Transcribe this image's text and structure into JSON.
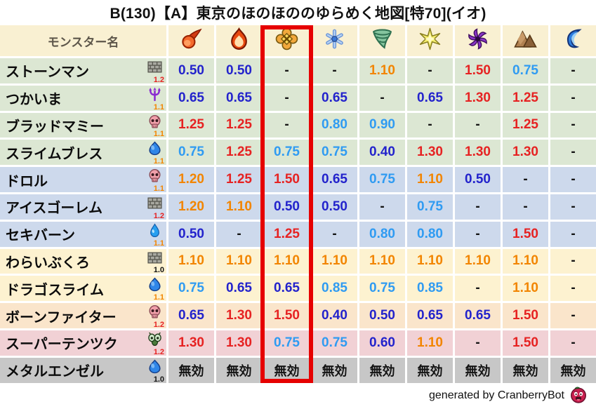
{
  "chart_data": {
    "type": "table",
    "title": "B(130)【A】東京のほのほののゆらめく地図[特70](イオ)",
    "name_header": "モンスター名",
    "element_columns": [
      "fireball-icon",
      "flame-icon",
      "explosion-icon",
      "snowflake-icon",
      "tornado-icon",
      "light-star-icon",
      "dark-pinwheel-icon",
      "earth-mountain-icon",
      "water-wave-icon"
    ],
    "highlight": {
      "column_index": 2,
      "border_color": "#e60000"
    },
    "value_colors": {
      "strong_resist": "#2323cc",
      "mild_resist": "#2f9bf2",
      "mild_weak": "#f28500",
      "strong_weak": "#e62222",
      "neutral": "#141414"
    },
    "level_colors": {
      "1.2": "#e62222",
      "1.1": "#f28500",
      "1.0": "#141414"
    },
    "rows": [
      {
        "name": "ストーンマン",
        "family_icon": "brick-icon",
        "level": "1.2",
        "bg": "#dce7d3",
        "values": [
          "0.50",
          "0.50",
          "-",
          "-",
          "1.10",
          "-",
          "1.50",
          "0.75",
          "-"
        ]
      },
      {
        "name": "つかいま",
        "family_icon": "trident-icon",
        "level": "1.1",
        "bg": "#dce7d3",
        "values": [
          "0.65",
          "0.65",
          "-",
          "0.65",
          "-",
          "0.65",
          "1.30",
          "1.25",
          "-"
        ]
      },
      {
        "name": "ブラッドマミー",
        "family_icon": "skull-icon",
        "level": "1.1",
        "bg": "#dce7d3",
        "values": [
          "1.25",
          "1.25",
          "-",
          "0.80",
          "0.90",
          "-",
          "-",
          "1.25",
          "-"
        ]
      },
      {
        "name": "スライムブレス",
        "family_icon": "slime-icon",
        "level": "1.1",
        "bg": "#dce7d3",
        "values": [
          "0.75",
          "1.25",
          "0.75",
          "0.75",
          "0.40",
          "1.30",
          "1.30",
          "1.30",
          "-"
        ]
      },
      {
        "name": "ドロル",
        "family_icon": "skull-icon",
        "level": "1.1",
        "bg": "#cdd9ec",
        "values": [
          "1.20",
          "1.25",
          "1.50",
          "0.65",
          "0.75",
          "1.10",
          "0.50",
          "-",
          "-"
        ]
      },
      {
        "name": "アイスゴーレム",
        "family_icon": "brick-icon",
        "level": "1.2",
        "bg": "#cdd9ec",
        "values": [
          "1.20",
          "1.10",
          "0.50",
          "0.50",
          "-",
          "0.75",
          "-",
          "-",
          "-"
        ]
      },
      {
        "name": "セキバーン",
        "family_icon": "waterdrop-icon",
        "level": "1.1",
        "bg": "#cdd9ec",
        "values": [
          "0.50",
          "-",
          "1.25",
          "-",
          "0.80",
          "0.80",
          "-",
          "1.50",
          "-"
        ]
      },
      {
        "name": "わらいぶくろ",
        "family_icon": "brick-icon",
        "level": "1.0",
        "bg": "#fdf2d0",
        "values": [
          "1.10",
          "1.10",
          "1.10",
          "1.10",
          "1.10",
          "1.10",
          "1.10",
          "1.10",
          "-"
        ]
      },
      {
        "name": "ドラゴスライム",
        "family_icon": "slime-icon",
        "level": "1.1",
        "bg": "#fdf2d0",
        "values": [
          "0.75",
          "0.65",
          "0.65",
          "0.85",
          "0.75",
          "0.85",
          "-",
          "1.10",
          "-"
        ]
      },
      {
        "name": "ボーンファイター",
        "family_icon": "skull-icon",
        "level": "1.2",
        "bg": "#fae5cb",
        "values": [
          "0.65",
          "1.30",
          "1.50",
          "0.40",
          "0.50",
          "0.65",
          "0.65",
          "1.50",
          "-"
        ]
      },
      {
        "name": "スーパーテンツク",
        "family_icon": "bug-icon",
        "level": "1.2",
        "bg": "#f1d1d5",
        "values": [
          "1.30",
          "1.30",
          "0.75",
          "0.75",
          "0.60",
          "1.10",
          "-",
          "1.50",
          "-"
        ]
      },
      {
        "name": "メタルエンゼル",
        "family_icon": "slime-icon",
        "level": "1.0",
        "bg": "#c7c7c7",
        "values": [
          "無効",
          "無効",
          "無効",
          "無効",
          "無効",
          "無効",
          "無効",
          "無効",
          "無効"
        ]
      }
    ]
  },
  "footer": {
    "credit": "generated by CranberryBot",
    "icon": "cranberry-icon"
  }
}
